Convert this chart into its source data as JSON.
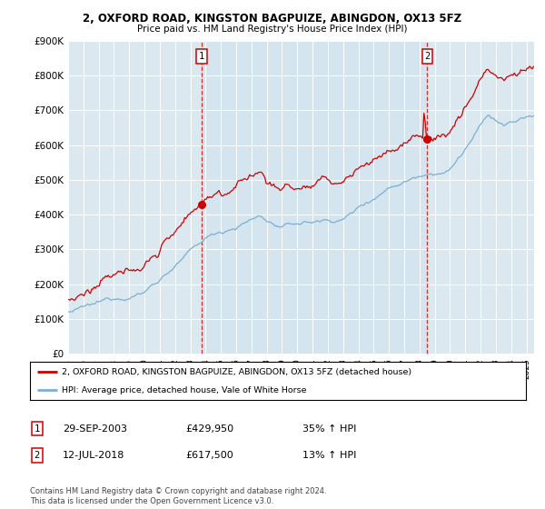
{
  "title1": "2, OXFORD ROAD, KINGSTON BAGPUIZE, ABINGDON, OX13 5FZ",
  "title2": "Price paid vs. HM Land Registry's House Price Index (HPI)",
  "ylim": [
    0,
    900000
  ],
  "hpi_color": "#7bafd4",
  "price_color": "#cc0000",
  "sale1_date": "29-SEP-2003",
  "sale1_price": 429950,
  "sale1_pct": "35%",
  "sale1_t": 2003.75,
  "sale2_date": "12-JUL-2018",
  "sale2_price": 617500,
  "sale2_pct": "13%",
  "sale2_t": 2018.5,
  "legend_property": "2, OXFORD ROAD, KINGSTON BAGPUIZE, ABINGDON, OX13 5FZ (detached house)",
  "legend_hpi": "HPI: Average price, detached house, Vale of White Horse",
  "footnote": "Contains HM Land Registry data © Crown copyright and database right 2024.\nThis data is licensed under the Open Government Licence v3.0.",
  "background_color": "#e8eef4",
  "plot_bg": "#dce8f0",
  "between_bg": "#d0e4f0"
}
